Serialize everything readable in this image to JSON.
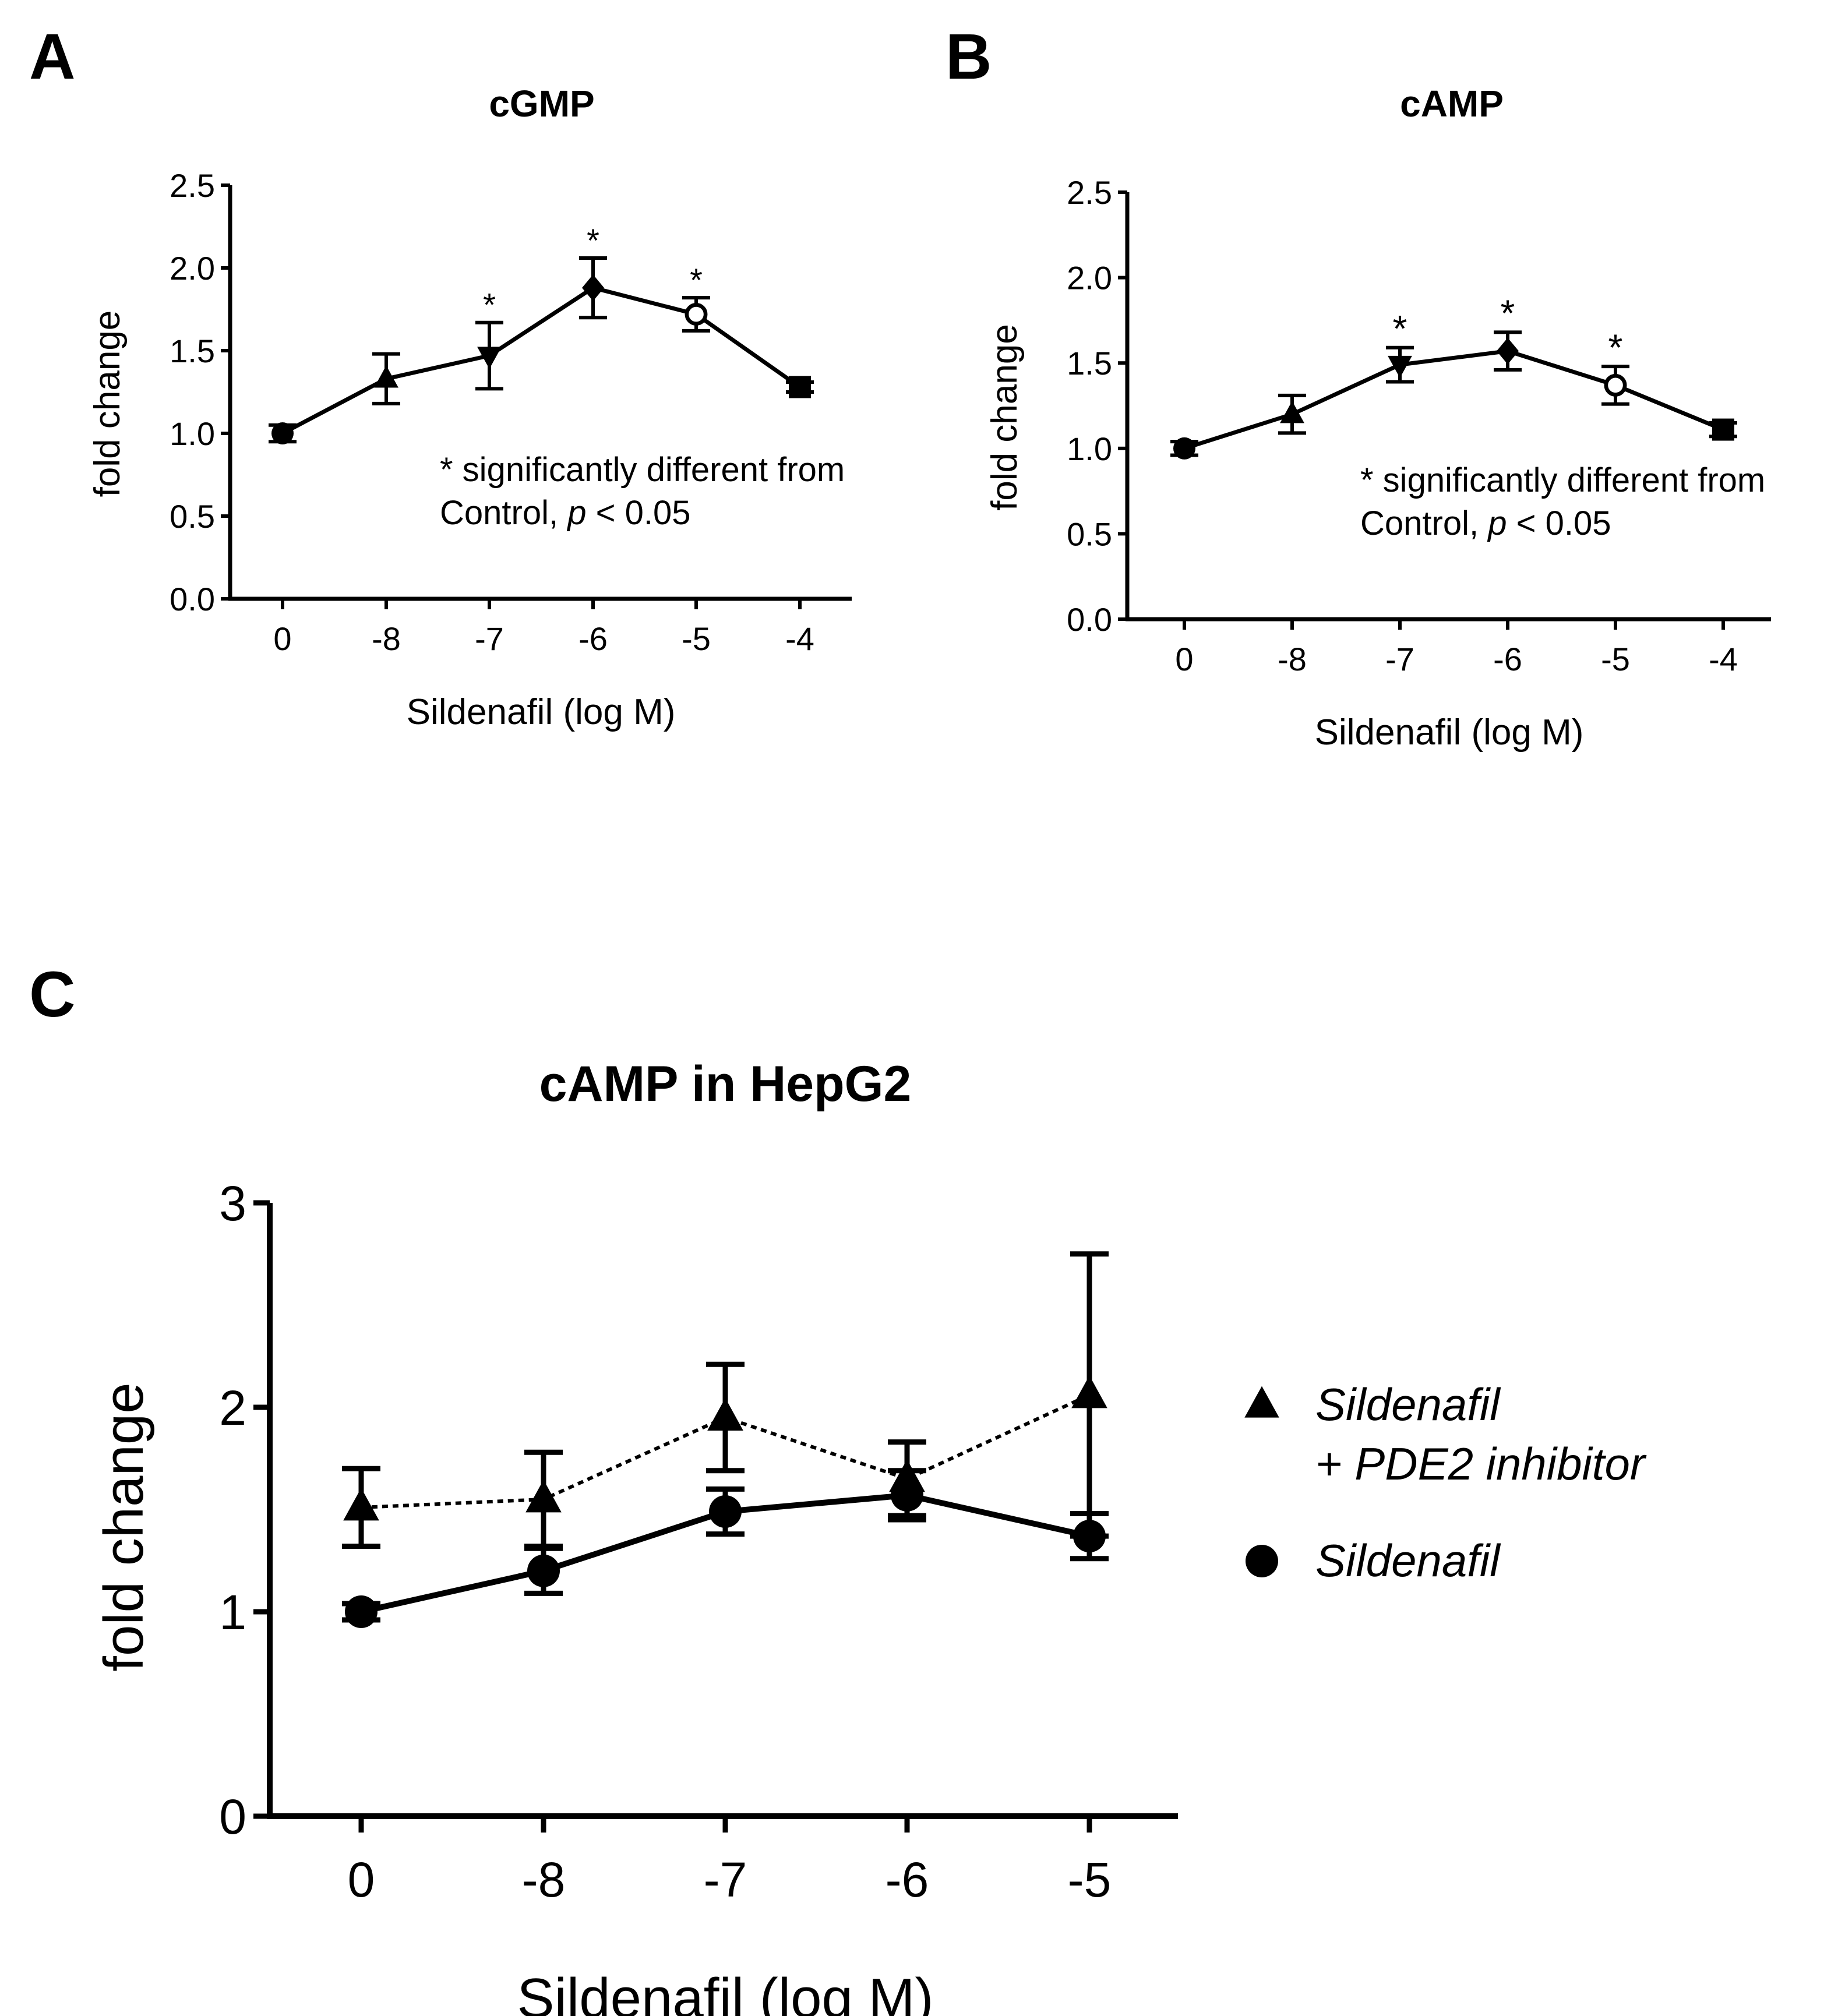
{
  "chart_data": [
    {
      "panel_label": "A",
      "type": "line",
      "title": "cGMP",
      "xlabel": "Sildenafil (log M)",
      "ylabel": "fold change",
      "categories": [
        "0",
        "-8",
        "-7",
        "-6",
        "-5",
        "-4"
      ],
      "yticks": [
        "0.0",
        "0.5",
        "1.0",
        "1.5",
        "2.0",
        "2.5"
      ],
      "ylim": [
        0,
        2.5
      ],
      "series": [
        {
          "name": "Sildenafil",
          "values": [
            1.0,
            1.33,
            1.47,
            1.88,
            1.72,
            1.28
          ],
          "error": [
            0.05,
            0.15,
            0.2,
            0.18,
            0.1,
            0.03
          ],
          "markers": [
            "circle",
            "triangle-up",
            "triangle-down",
            "diamond",
            "circle-open",
            "square"
          ]
        }
      ],
      "significance": [
        "",
        "",
        "*",
        "*",
        "*",
        ""
      ],
      "annotation": {
        "line1": "* significantly different from",
        "line2_prefix": "Control, ",
        "line2_italic": "p",
        "line2_suffix": " < 0.05"
      }
    },
    {
      "panel_label": "B",
      "type": "line",
      "title": "cAMP",
      "xlabel": "Sildenafil (log M)",
      "ylabel": "fold change",
      "categories": [
        "0",
        "-8",
        "-7",
        "-6",
        "-5",
        "-4"
      ],
      "yticks": [
        "0.0",
        "0.5",
        "1.0",
        "1.5",
        "2.0",
        "2.5"
      ],
      "ylim": [
        0,
        2.5
      ],
      "series": [
        {
          "name": "Sildenafil",
          "values": [
            1.0,
            1.2,
            1.49,
            1.57,
            1.37,
            1.11
          ],
          "error": [
            0.04,
            0.11,
            0.1,
            0.11,
            0.11,
            0.04
          ],
          "markers": [
            "circle",
            "triangle-up",
            "triangle-down",
            "diamond",
            "circle-open",
            "square"
          ]
        }
      ],
      "significance": [
        "",
        "",
        "*",
        "*",
        "*",
        ""
      ],
      "annotation": {
        "line1": "* significantly different from",
        "line2_prefix": "Control, ",
        "line2_italic": "p",
        "line2_suffix": " < 0.05"
      }
    },
    {
      "panel_label": "C",
      "type": "line",
      "title": "cAMP in HepG2",
      "xlabel": "Sildenafil (log M)",
      "ylabel": "fold change",
      "categories": [
        "0",
        "-8",
        "-7",
        "-6",
        "-5"
      ],
      "yticks": [
        "0",
        "1",
        "2",
        "3"
      ],
      "ylim": [
        0,
        3
      ],
      "series": [
        {
          "name": "Sildenafil + PDE2 inhibitor",
          "legend_line1": "Sildenafil",
          "legend_line2": "+ PDE2 inhibitor",
          "marker": "triangle-up",
          "line_style": "dotted",
          "values": [
            1.51,
            1.55,
            1.95,
            1.65,
            2.06
          ],
          "error": [
            0.19,
            0.23,
            0.26,
            0.18,
            0.69
          ]
        },
        {
          "name": "Sildenafil",
          "legend_line1": "Sildenafil",
          "marker": "circle",
          "line_style": "solid",
          "values": [
            1.0,
            1.2,
            1.49,
            1.57,
            1.37
          ],
          "error": [
            0.04,
            0.11,
            0.11,
            0.12,
            0.11
          ]
        }
      ]
    }
  ]
}
